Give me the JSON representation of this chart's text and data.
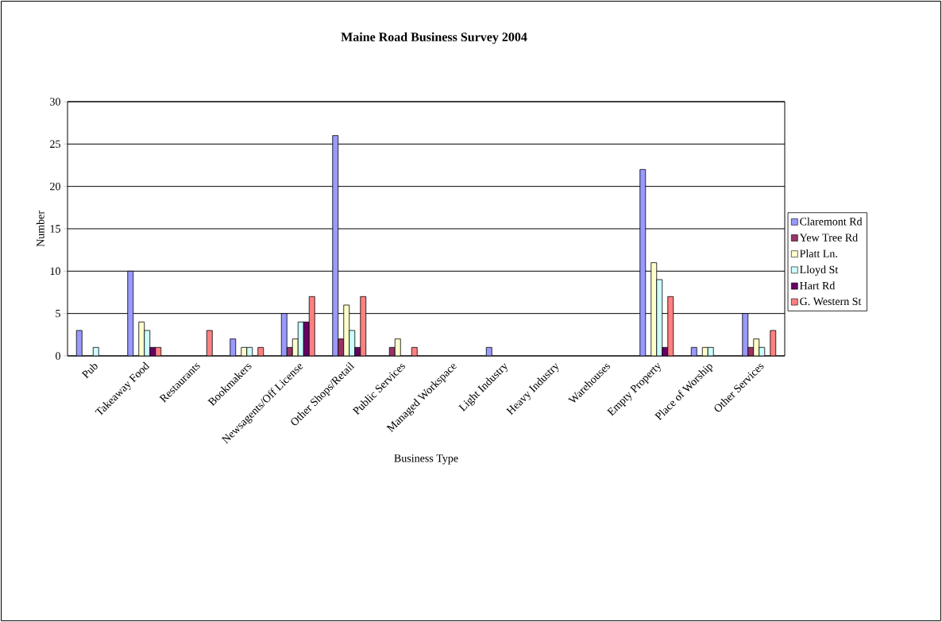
{
  "chart_data": {
    "type": "bar",
    "title": "Maine Road Business Survey 2004",
    "xlabel": "Business Type",
    "ylabel": "Number",
    "categories": [
      "Pub",
      "Takeaway Food",
      "Restaurants",
      "Bookmakers",
      "Newsagents/Off License",
      "Other Shops/Retail",
      "Public Services",
      "Managed Workspace",
      "Light Industry",
      "Heavy Industry",
      "Warehouses",
      "Empty Property",
      "Place of Worship",
      "Other Services"
    ],
    "series": [
      {
        "name": "Claremont Rd",
        "color": "#9999ff",
        "values": [
          3,
          10,
          0,
          2,
          5,
          26,
          0,
          0,
          1,
          0,
          0,
          22,
          1,
          5
        ]
      },
      {
        "name": "Yew Tree Rd",
        "color": "#993366",
        "values": [
          0,
          0,
          0,
          0,
          1,
          2,
          1,
          0,
          0,
          0,
          0,
          0,
          0,
          1
        ]
      },
      {
        "name": "Platt Ln.",
        "color": "#ffffcc",
        "values": [
          0,
          4,
          0,
          1,
          2,
          6,
          2,
          0,
          0,
          0,
          0,
          11,
          1,
          2
        ]
      },
      {
        "name": "Lloyd St",
        "color": "#ccffff",
        "values": [
          1,
          3,
          0,
          1,
          4,
          3,
          0,
          0,
          0,
          0,
          0,
          9,
          1,
          1
        ]
      },
      {
        "name": "Hart Rd",
        "color": "#660066",
        "values": [
          0,
          1,
          0,
          0,
          4,
          1,
          0,
          0,
          0,
          0,
          0,
          1,
          0,
          0
        ]
      },
      {
        "name": "G. Western St",
        "color": "#ff8080",
        "values": [
          0,
          1,
          3,
          1,
          7,
          7,
          1,
          0,
          0,
          0,
          0,
          7,
          0,
          3
        ]
      }
    ],
    "ylim": [
      0,
      30
    ],
    "yticks": [
      0,
      5,
      10,
      15,
      20,
      25,
      30
    ],
    "grid": "y",
    "legend": "right"
  }
}
